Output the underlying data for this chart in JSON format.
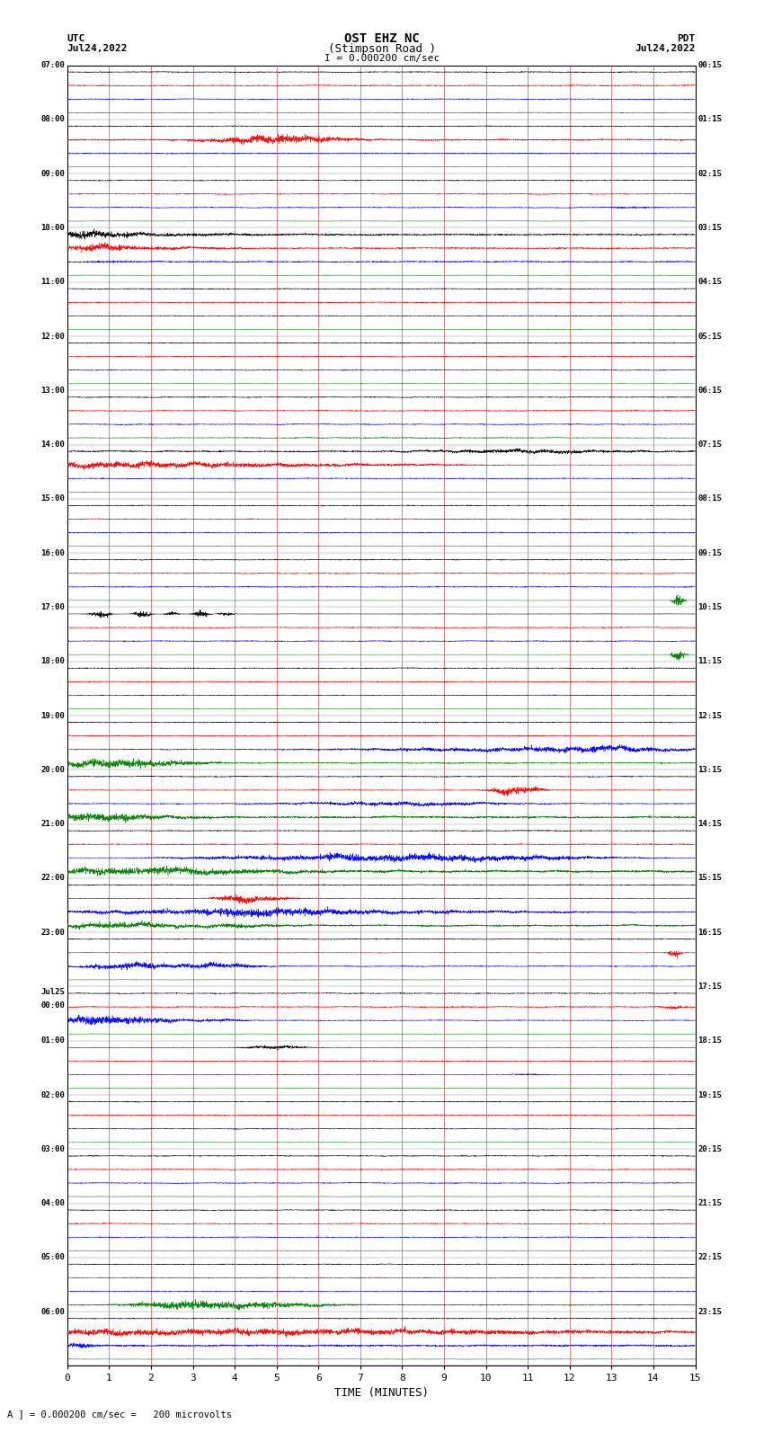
{
  "title_line1": "OST EHZ NC",
  "title_line2": "(Stimpson Road )",
  "title_line3": "I = 0.000200 cm/sec",
  "left_top_label1": "UTC",
  "left_top_label2": "Jul24,2022",
  "right_top_label1": "PDT",
  "right_top_label2": "Jul24,2022",
  "bottom_label": "TIME (MINUTES)",
  "bottom_note": "A ] = 0.000200 cm/sec =   200 microvolts",
  "background_color": "#ffffff",
  "vgrid_color": "#cc0000",
  "hline_color": "#888888",
  "trace_colors": [
    "black",
    "red",
    "blue",
    "green"
  ],
  "utc_labels": [
    "07:00",
    "08:00",
    "09:00",
    "10:00",
    "11:00",
    "12:00",
    "13:00",
    "14:00",
    "15:00",
    "16:00",
    "17:00",
    "18:00",
    "19:00",
    "20:00",
    "21:00",
    "22:00",
    "23:00",
    "Jul25|00:00",
    "01:00",
    "02:00",
    "03:00",
    "04:00",
    "05:00",
    "06:00"
  ],
  "pdt_labels": [
    "00:15",
    "01:15",
    "02:15",
    "03:15",
    "04:15",
    "05:15",
    "06:15",
    "07:15",
    "08:15",
    "09:15",
    "10:15",
    "11:15",
    "12:15",
    "13:15",
    "14:15",
    "15:15",
    "16:15",
    "17:15",
    "18:15",
    "19:15",
    "20:15",
    "21:15",
    "22:15",
    "23:15"
  ],
  "n_rows": 24,
  "x_min": 0,
  "x_max": 15,
  "x_ticks": [
    0,
    1,
    2,
    3,
    4,
    5,
    6,
    7,
    8,
    9,
    10,
    11,
    12,
    13,
    14,
    15
  ],
  "seed": 42
}
